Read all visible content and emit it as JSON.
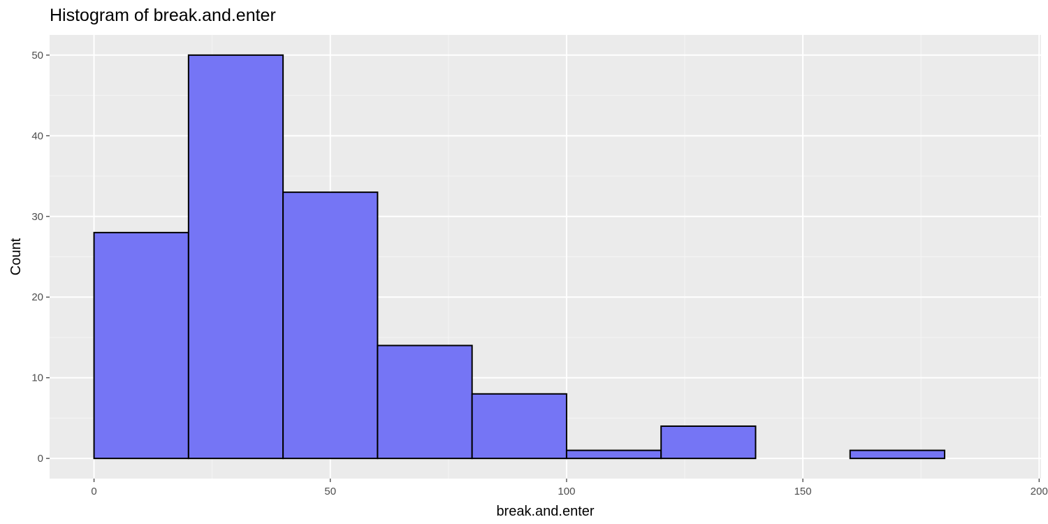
{
  "chart_data": {
    "type": "histogram",
    "title": "Histogram of break.and.enter",
    "xlabel": "break.and.enter",
    "ylabel": "Count",
    "bins": [
      {
        "x_start": 0,
        "x_end": 20,
        "count": 28
      },
      {
        "x_start": 20,
        "x_end": 40,
        "count": 50
      },
      {
        "x_start": 40,
        "x_end": 60,
        "count": 33
      },
      {
        "x_start": 60,
        "x_end": 80,
        "count": 14
      },
      {
        "x_start": 80,
        "x_end": 100,
        "count": 8
      },
      {
        "x_start": 100,
        "x_end": 120,
        "count": 1
      },
      {
        "x_start": 120,
        "x_end": 140,
        "count": 4
      },
      {
        "x_start": 140,
        "x_end": 160,
        "count": 0
      },
      {
        "x_start": 160,
        "x_end": 180,
        "count": 1
      }
    ],
    "xlim": [
      -9.4,
      200.4
    ],
    "ylim": [
      -2.5,
      52.5
    ],
    "x_ticks": [
      0,
      50,
      100,
      150,
      200
    ],
    "y_ticks": [
      0,
      10,
      20,
      30,
      40,
      50
    ],
    "grid": true,
    "colors": {
      "bar_fill": "#7575f5",
      "bar_outline": "#000000",
      "panel_background": "#ebebeb",
      "grid_major": "#ffffff",
      "grid_minor": "#f5f5f5"
    }
  }
}
